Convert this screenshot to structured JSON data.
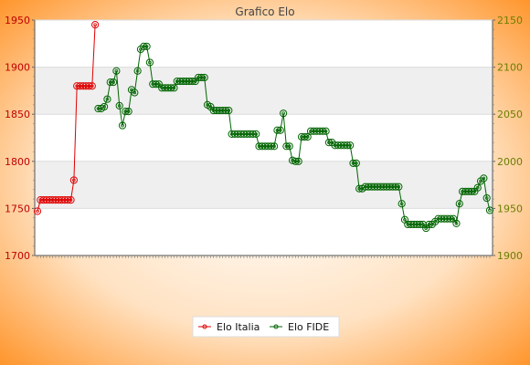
{
  "chart_data": {
    "type": "line",
    "title": "Grafico Elo",
    "colors": {
      "bg_center": "#ffffff",
      "bg_edge": "#ff8c1a",
      "band": "#efefef",
      "grid": "#dcdcdc",
      "axis_left": "#c00000",
      "axis_right": "#6b7f00",
      "elo_italia": "#e00000",
      "elo_fide": "#006400"
    },
    "y_left": {
      "label": "",
      "ylim": [
        1700,
        1950
      ],
      "ticks": [
        1700,
        1750,
        1800,
        1850,
        1900,
        1950
      ]
    },
    "y_right": {
      "label": "",
      "ylim": [
        1900,
        2150
      ],
      "ticks": [
        1900,
        1950,
        2000,
        2050,
        2100,
        2150
      ]
    },
    "x_range": [
      0,
      149
    ],
    "legend_position": "bottom-center",
    "series": [
      {
        "name": "Elo Italia",
        "axis": "left",
        "points": [
          [
            0,
            1747
          ],
          [
            1,
            1759
          ],
          [
            2,
            1759
          ],
          [
            3,
            1759
          ],
          [
            4,
            1759
          ],
          [
            5,
            1759
          ],
          [
            6,
            1759
          ],
          [
            7,
            1759
          ],
          [
            8,
            1759
          ],
          [
            9,
            1759
          ],
          [
            10,
            1759
          ],
          [
            11,
            1759
          ],
          [
            12,
            1780
          ],
          [
            13,
            1880
          ],
          [
            14,
            1880
          ],
          [
            15,
            1880
          ],
          [
            16,
            1880
          ],
          [
            17,
            1880
          ],
          [
            18,
            1880
          ],
          [
            19,
            1945
          ]
        ]
      },
      {
        "name": "Elo FIDE",
        "axis": "right",
        "points": [
          [
            20,
            2056
          ],
          [
            21,
            2056
          ],
          [
            22,
            2058
          ],
          [
            23,
            2066
          ],
          [
            24,
            2084
          ],
          [
            25,
            2084
          ],
          [
            26,
            2096
          ],
          [
            27,
            2059
          ],
          [
            28,
            2038
          ],
          [
            29,
            2053
          ],
          [
            30,
            2053
          ],
          [
            31,
            2076
          ],
          [
            32,
            2073
          ],
          [
            33,
            2096
          ],
          [
            34,
            2119
          ],
          [
            35,
            2122
          ],
          [
            36,
            2122
          ],
          [
            37,
            2105
          ],
          [
            38,
            2082
          ],
          [
            39,
            2082
          ],
          [
            40,
            2082
          ],
          [
            41,
            2078
          ],
          [
            42,
            2078
          ],
          [
            43,
            2078
          ],
          [
            44,
            2078
          ],
          [
            45,
            2078
          ],
          [
            46,
            2085
          ],
          [
            47,
            2085
          ],
          [
            48,
            2085
          ],
          [
            49,
            2085
          ],
          [
            50,
            2085
          ],
          [
            51,
            2085
          ],
          [
            52,
            2085
          ],
          [
            53,
            2089
          ],
          [
            54,
            2089
          ],
          [
            55,
            2089
          ],
          [
            56,
            2060
          ],
          [
            57,
            2058
          ],
          [
            58,
            2054
          ],
          [
            59,
            2054
          ],
          [
            60,
            2054
          ],
          [
            61,
            2054
          ],
          [
            62,
            2054
          ],
          [
            63,
            2054
          ],
          [
            64,
            2029
          ],
          [
            65,
            2029
          ],
          [
            66,
            2029
          ],
          [
            67,
            2029
          ],
          [
            68,
            2029
          ],
          [
            69,
            2029
          ],
          [
            70,
            2029
          ],
          [
            71,
            2029
          ],
          [
            72,
            2029
          ],
          [
            73,
            2016
          ],
          [
            74,
            2016
          ],
          [
            75,
            2016
          ],
          [
            76,
            2016
          ],
          [
            77,
            2016
          ],
          [
            78,
            2016
          ],
          [
            79,
            2033
          ],
          [
            80,
            2033
          ],
          [
            81,
            2051
          ],
          [
            82,
            2016
          ],
          [
            83,
            2016
          ],
          [
            84,
            2001
          ],
          [
            85,
            2000
          ],
          [
            86,
            2000
          ],
          [
            87,
            2026
          ],
          [
            88,
            2026
          ],
          [
            89,
            2026
          ],
          [
            90,
            2032
          ],
          [
            91,
            2032
          ],
          [
            92,
            2032
          ],
          [
            93,
            2032
          ],
          [
            94,
            2032
          ],
          [
            95,
            2032
          ],
          [
            96,
            2020
          ],
          [
            97,
            2020
          ],
          [
            98,
            2017
          ],
          [
            99,
            2017
          ],
          [
            100,
            2017
          ],
          [
            101,
            2017
          ],
          [
            102,
            2017
          ],
          [
            103,
            2017
          ],
          [
            104,
            1998
          ],
          [
            105,
            1998
          ],
          [
            106,
            1971
          ],
          [
            107,
            1971
          ],
          [
            108,
            1973
          ],
          [
            109,
            1973
          ],
          [
            110,
            1973
          ],
          [
            111,
            1973
          ],
          [
            112,
            1973
          ],
          [
            113,
            1973
          ],
          [
            114,
            1973
          ],
          [
            115,
            1973
          ],
          [
            116,
            1973
          ],
          [
            117,
            1973
          ],
          [
            118,
            1973
          ],
          [
            119,
            1973
          ],
          [
            120,
            1955
          ],
          [
            121,
            1938
          ],
          [
            122,
            1933
          ],
          [
            123,
            1933
          ],
          [
            124,
            1933
          ],
          [
            125,
            1933
          ],
          [
            126,
            1933
          ],
          [
            127,
            1933
          ],
          [
            128,
            1929
          ],
          [
            129,
            1933
          ],
          [
            130,
            1933
          ],
          [
            131,
            1936
          ],
          [
            132,
            1939
          ],
          [
            133,
            1939
          ],
          [
            134,
            1939
          ],
          [
            135,
            1939
          ],
          [
            136,
            1939
          ],
          [
            137,
            1939
          ],
          [
            138,
            1934
          ],
          [
            139,
            1955
          ],
          [
            140,
            1968
          ],
          [
            141,
            1968
          ],
          [
            142,
            1968
          ],
          [
            143,
            1968
          ],
          [
            144,
            1968
          ],
          [
            145,
            1972
          ],
          [
            146,
            1979
          ],
          [
            147,
            1982
          ],
          [
            148,
            1961
          ],
          [
            149,
            1948
          ]
        ]
      }
    ],
    "legend": {
      "entries": [
        "Elo Italia",
        "Elo FIDE"
      ]
    }
  }
}
